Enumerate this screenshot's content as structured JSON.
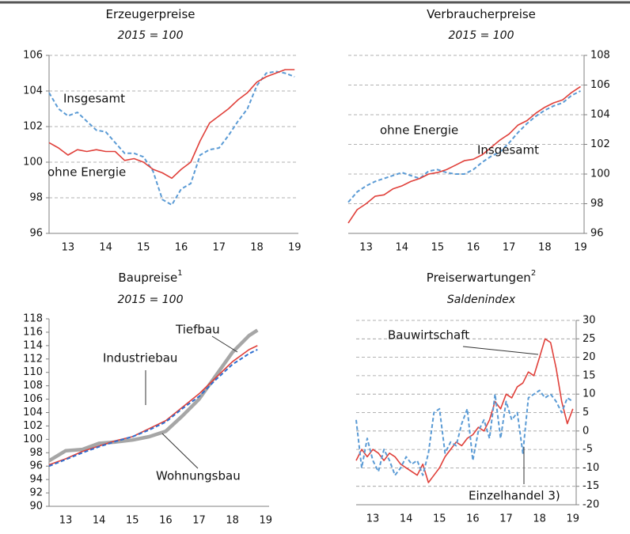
{
  "chart_data": [
    {
      "type": "line",
      "title": "Erzeugerpreise",
      "subtitle": "2015 = 100",
      "y_axis_side": "left",
      "grid": true,
      "x": [
        2013.0,
        2013.25,
        2013.5,
        2013.75,
        2014.0,
        2014.25,
        2014.5,
        2014.75,
        2015.0,
        2015.25,
        2015.5,
        2015.75,
        2016.0,
        2016.25,
        2016.5,
        2016.75,
        2017.0,
        2017.25,
        2017.5,
        2017.75,
        2018.0,
        2018.25,
        2018.5,
        2018.75,
        2019.0,
        2019.25,
        2019.5
      ],
      "xlim": [
        2013.0,
        2019.6
      ],
      "xticks": [
        {
          "value": 2013.5,
          "label": "13"
        },
        {
          "value": 2014.5,
          "label": "14"
        },
        {
          "value": 2015.5,
          "label": "15"
        },
        {
          "value": 2016.5,
          "label": "16"
        },
        {
          "value": 2017.5,
          "label": "17"
        },
        {
          "value": 2018.5,
          "label": "18"
        },
        {
          "value": 2019.5,
          "label": "19"
        }
      ],
      "ylim": [
        96,
        106
      ],
      "yticks": [
        96,
        98,
        100,
        102,
        104,
        106
      ],
      "series": [
        {
          "name": "Insgesamt",
          "color": "#5b9bd5",
          "style": "dashed",
          "values": [
            103.9,
            103.0,
            102.6,
            102.8,
            102.3,
            101.8,
            101.7,
            101.1,
            100.5,
            100.5,
            100.3,
            99.5,
            97.9,
            97.6,
            98.5,
            98.8,
            100.4,
            100.7,
            100.8,
            101.5,
            102.3,
            103.0,
            104.3,
            105.0,
            105.1,
            105.0,
            104.8
          ]
        },
        {
          "name": "ohne Energie",
          "color": "#e0403a",
          "style": "solid",
          "values": [
            101.1,
            100.8,
            100.4,
            100.7,
            100.6,
            100.7,
            100.6,
            100.6,
            100.1,
            100.2,
            100.0,
            99.6,
            99.4,
            99.1,
            99.6,
            100.0,
            101.2,
            102.2,
            102.6,
            103.0,
            103.5,
            103.9,
            104.5,
            104.8,
            105.0,
            105.2,
            105.2
          ]
        }
      ]
    },
    {
      "type": "line",
      "title": "Verbraucherpreise",
      "subtitle": "2015 = 100",
      "y_axis_side": "right",
      "grid": true,
      "x": [
        2013.0,
        2013.25,
        2013.5,
        2013.75,
        2014.0,
        2014.25,
        2014.5,
        2014.75,
        2015.0,
        2015.25,
        2015.5,
        2015.75,
        2016.0,
        2016.25,
        2016.5,
        2016.75,
        2017.0,
        2017.25,
        2017.5,
        2017.75,
        2018.0,
        2018.25,
        2018.5,
        2018.75,
        2019.0,
        2019.25,
        2019.5
      ],
      "xlim": [
        2013.0,
        2019.6
      ],
      "xticks": [
        {
          "value": 2013.5,
          "label": "13"
        },
        {
          "value": 2014.5,
          "label": "14"
        },
        {
          "value": 2015.5,
          "label": "15"
        },
        {
          "value": 2016.5,
          "label": "16"
        },
        {
          "value": 2017.5,
          "label": "17"
        },
        {
          "value": 2018.5,
          "label": "18"
        },
        {
          "value": 2019.5,
          "label": "19"
        }
      ],
      "ylim": [
        96,
        108
      ],
      "yticks": [
        96,
        98,
        100,
        102,
        104,
        106,
        108
      ],
      "series": [
        {
          "name": "ohne Energie",
          "color": "#5b9bd5",
          "style": "dashed",
          "values": [
            98.1,
            98.8,
            99.2,
            99.5,
            99.7,
            99.9,
            100.1,
            99.9,
            99.7,
            100.2,
            100.3,
            100.1,
            100.0,
            100.0,
            100.3,
            100.8,
            101.2,
            101.5,
            102.1,
            102.8,
            103.4,
            103.9,
            104.3,
            104.6,
            104.8,
            105.3,
            105.6
          ]
        },
        {
          "name": "Insgesamt",
          "color": "#e0403a",
          "style": "solid",
          "values": [
            96.7,
            97.6,
            98.0,
            98.5,
            98.6,
            99.0,
            99.2,
            99.5,
            99.7,
            100.0,
            100.1,
            100.3,
            100.6,
            100.9,
            101.0,
            101.3,
            101.8,
            102.3,
            102.7,
            103.3,
            103.6,
            104.1,
            104.5,
            104.8,
            105.0,
            105.5,
            105.9
          ]
        }
      ]
    },
    {
      "type": "line",
      "title": "Baupreise",
      "title_note": "1",
      "subtitle": "2015 = 100",
      "y_axis_side": "left",
      "grid": false,
      "x": [
        2013.0,
        2013.5,
        2014.0,
        2014.5,
        2015.0,
        2015.5,
        2016.0,
        2016.5,
        2017.0,
        2017.5,
        2018.0,
        2018.5,
        2019.0,
        2019.25
      ],
      "xlim": [
        2013.0,
        2019.6
      ],
      "xticks": [
        {
          "value": 2013.5,
          "label": "13"
        },
        {
          "value": 2014.5,
          "label": "14"
        },
        {
          "value": 2015.5,
          "label": "15"
        },
        {
          "value": 2016.5,
          "label": "16"
        },
        {
          "value": 2017.5,
          "label": "17"
        },
        {
          "value": 2018.5,
          "label": "18"
        },
        {
          "value": 2019.5,
          "label": "19"
        }
      ],
      "ylim": [
        90,
        118
      ],
      "yticks": [
        90,
        92,
        94,
        96,
        98,
        100,
        102,
        104,
        106,
        108,
        110,
        112,
        114,
        116,
        118
      ],
      "series": [
        {
          "name": "Tiefbau",
          "color": "#a6a6a6",
          "style": "thick",
          "values": [
            96.8,
            98.3,
            98.5,
            99.4,
            99.6,
            99.9,
            100.4,
            101.2,
            103.5,
            106.0,
            109.5,
            113.0,
            115.5,
            116.3
          ]
        },
        {
          "name": "Industriebau",
          "color": "#e0403a",
          "style": "solid",
          "values": [
            96.2,
            97.1,
            98.2,
            99.0,
            99.8,
            100.4,
            101.6,
            102.8,
            104.8,
            106.8,
            109.2,
            111.6,
            113.4,
            114.0
          ]
        },
        {
          "name": "Wohnungsbau",
          "color": "#2e6fd0",
          "style": "dashed",
          "values": [
            96.0,
            97.0,
            98.0,
            98.9,
            99.7,
            100.4,
            101.4,
            102.6,
            104.6,
            106.4,
            108.9,
            111.2,
            112.8,
            113.4
          ]
        }
      ]
    },
    {
      "type": "line",
      "title": "Preiserwartungen",
      "title_note": "2",
      "subtitle": "Saldenindex",
      "y_axis_side": "right",
      "grid": true,
      "x": [
        2013.0,
        2013.1667,
        2013.3333,
        2013.5,
        2013.6667,
        2013.8333,
        2014.0,
        2014.1667,
        2014.3333,
        2014.5,
        2014.6667,
        2014.8333,
        2015.0,
        2015.1667,
        2015.3333,
        2015.5,
        2015.6667,
        2015.8333,
        2016.0,
        2016.1667,
        2016.3333,
        2016.5,
        2016.6667,
        2016.8333,
        2017.0,
        2017.1667,
        2017.3333,
        2017.5,
        2017.6667,
        2017.8333,
        2018.0,
        2018.1667,
        2018.3333,
        2018.5,
        2018.6667,
        2018.8333,
        2019.0,
        2019.1667,
        2019.3333,
        2019.5
      ],
      "xlim": [
        2013.0,
        2019.6
      ],
      "xticks": [
        {
          "value": 2013.5,
          "label": "13"
        },
        {
          "value": 2014.5,
          "label": "14"
        },
        {
          "value": 2015.5,
          "label": "15"
        },
        {
          "value": 2016.5,
          "label": "16"
        },
        {
          "value": 2017.5,
          "label": "17"
        },
        {
          "value": 2018.5,
          "label": "18"
        },
        {
          "value": 2019.5,
          "label": "19"
        }
      ],
      "ylim": [
        -20,
        30
      ],
      "yticks": [
        -20,
        -15,
        -10,
        -5,
        0,
        5,
        10,
        15,
        20,
        25,
        30
      ],
      "series": [
        {
          "name": "Bauwirtschaft",
          "color": "#e0403a",
          "style": "solid",
          "values": [
            -8,
            -5,
            -7,
            -5,
            -6,
            -8,
            -6,
            -7,
            -9,
            -10,
            -11,
            -12,
            -9,
            -14,
            -12,
            -10,
            -7,
            -5,
            -3,
            -4,
            -2,
            -1,
            1,
            0,
            3,
            8,
            6,
            10,
            9,
            12,
            13,
            16,
            15,
            20,
            25,
            24,
            17,
            8,
            2,
            6
          ]
        },
        {
          "name": "Einzelhandel 3)",
          "color": "#5b9bd5",
          "style": "dashed",
          "values": [
            3,
            -10,
            -2,
            -8,
            -11,
            -5,
            -8,
            -12,
            -10,
            -7,
            -9,
            -8,
            -12,
            -6,
            5,
            6,
            -6,
            -3,
            -4,
            2,
            6,
            -8,
            0,
            3,
            -2,
            10,
            -2,
            8,
            3,
            5,
            -6,
            9,
            10,
            11,
            9,
            10,
            8,
            5,
            9,
            8
          ]
        }
      ]
    }
  ]
}
